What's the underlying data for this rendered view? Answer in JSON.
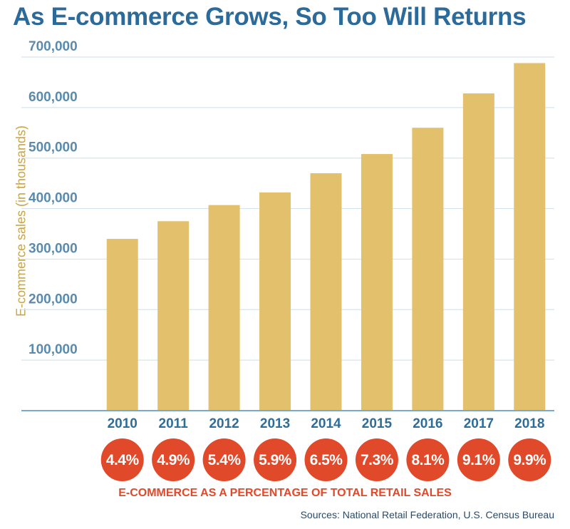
{
  "chart_data": {
    "type": "bar",
    "title": "As E-commerce Grows, So Too Will Returns",
    "ylabel": "E-commerce sales (in thousands)",
    "xlabel": "",
    "categories": [
      "2010",
      "2011",
      "2012",
      "2013",
      "2014",
      "2015",
      "2016",
      "2017",
      "2018"
    ],
    "values": [
      340000,
      375000,
      407000,
      432000,
      470000,
      508000,
      560000,
      628000,
      688000
    ],
    "ylim": [
      0,
      700000
    ],
    "yticks": [
      100000,
      200000,
      300000,
      400000,
      500000,
      600000,
      700000
    ],
    "ytick_labels": [
      "100,000",
      "200,000",
      "300,000",
      "400,000",
      "500,000",
      "600,000",
      "700,000"
    ],
    "grid": true,
    "bar_color": "#e2c06c",
    "percent_labels": [
      "4.4%",
      "4.9%",
      "5.4%",
      "5.9%",
      "6.5%",
      "7.3%",
      "8.1%",
      "9.1%",
      "9.9%"
    ],
    "percent_caption": "E-COMMERCE AS A PERCENTAGE OF TOTAL RETAIL SALES",
    "source": "Sources: National Retail Federation, U.S. Census Bureau"
  },
  "colors": {
    "title": "#2b6a99",
    "bar": "#e2c06c",
    "grid": "#d6e4ee",
    "axis": "#7aa9cb",
    "badge": "#e0492a"
  }
}
